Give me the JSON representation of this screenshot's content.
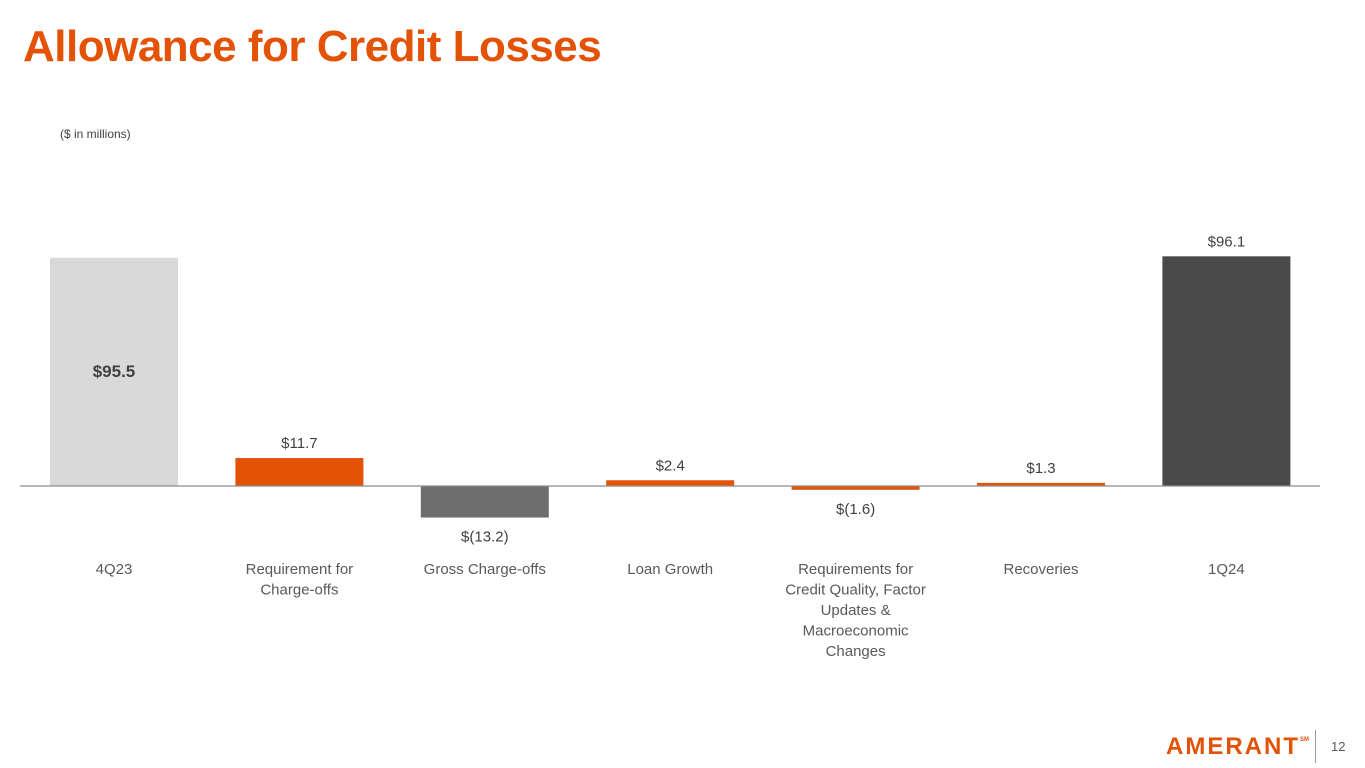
{
  "title": "Allowance for Credit Losses",
  "units_note": "($ in millions)",
  "brand": {
    "logo_text": "AMERANT",
    "logo_mark": "SM",
    "accent": "#e35205"
  },
  "page_number": "12",
  "chart_data": {
    "type": "bar",
    "subtype": "waterfall",
    "title": "Allowance for Credit Losses",
    "ylabel": "$ in millions",
    "categories": [
      "4Q23",
      "Requirement for Charge-offs",
      "Gross Charge-offs",
      "Loan Growth",
      "Requirements for Credit Quality, Factor Updates & Macroeconomic Changes",
      "Recoveries",
      "1Q24"
    ],
    "category_lines": [
      [
        "4Q23"
      ],
      [
        "Requirement for",
        "Charge-offs"
      ],
      [
        "Gross Charge-offs"
      ],
      [
        "Loan Growth"
      ],
      [
        "Requirements for",
        "Credit Quality, Factor",
        "Updates &",
        "Macroeconomic",
        "Changes"
      ],
      [
        "Recoveries"
      ],
      [
        "1Q24"
      ]
    ],
    "values": [
      95.5,
      11.7,
      -13.2,
      2.4,
      -1.6,
      1.3,
      96.1
    ],
    "value_labels": [
      "$95.5",
      "$11.7",
      "$(13.2)",
      "$2.4",
      "$(1.6)",
      "$1.3",
      "$96.1"
    ],
    "bar_kinds": [
      "total",
      "increase",
      "decrease",
      "increase",
      "decrease",
      "increase",
      "total"
    ],
    "colors": [
      "#d9d9d9",
      "#e35205",
      "#6e6e6e",
      "#e35205",
      "#e35205",
      "#e35205",
      "#4a4a4a"
    ],
    "grid": false,
    "legend": "none"
  }
}
